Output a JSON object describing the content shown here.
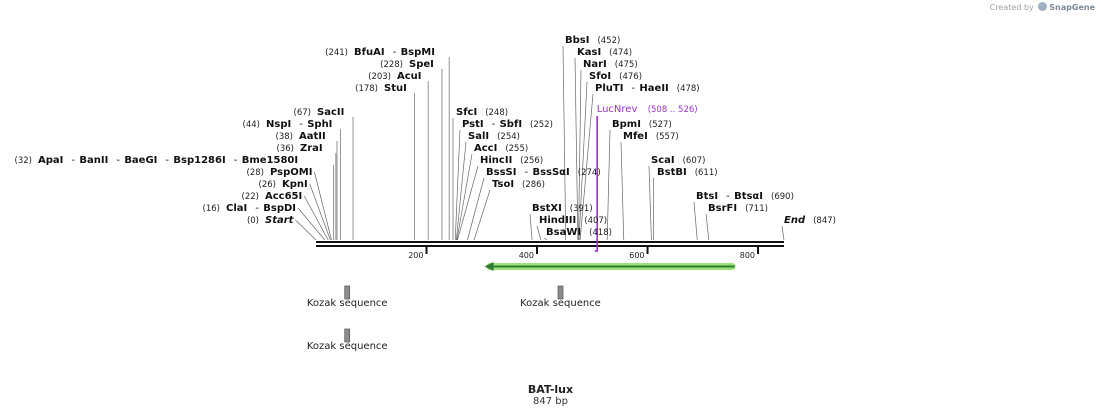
{
  "credit": {
    "prefix": "Created by",
    "brand": "SnapGene"
  },
  "map": {
    "name": "BAT-lux",
    "length_label": "847 bp",
    "length_bp": 847
  },
  "colors": {
    "primer": "#9b30c8",
    "feature_arrow": "#2e7d32",
    "feature_glow": "#9be27b",
    "box": "#8c8c8c"
  },
  "ruler": {
    "ticks": [
      200,
      400,
      600,
      800
    ]
  },
  "sites": [
    {
      "names": [
        "Start"
      ],
      "pos": "(0)",
      "bp": 0,
      "italic": true
    },
    {
      "names": [
        "ClaI",
        "BspDI"
      ],
      "pos": "(16)",
      "bp": 16
    },
    {
      "names": [
        "Acc65I"
      ],
      "pos": "(22)",
      "bp": 22
    },
    {
      "names": [
        "KpnI"
      ],
      "pos": "(26)",
      "bp": 26
    },
    {
      "names": [
        "PspOMI"
      ],
      "pos": "(28)",
      "bp": 28
    },
    {
      "names": [
        "ApaI",
        "BanII",
        "BaeGI",
        "Bsp1286I",
        "Bme1580I"
      ],
      "pos": "(32)",
      "bp": 32
    },
    {
      "names": [
        "ZraI"
      ],
      "pos": "(36)",
      "bp": 36
    },
    {
      "names": [
        "AatII"
      ],
      "pos": "(38)",
      "bp": 38
    },
    {
      "names": [
        "NspI",
        "SphI"
      ],
      "pos": "(44)",
      "bp": 44
    },
    {
      "names": [
        "SacII"
      ],
      "pos": "(67)",
      "bp": 67
    },
    {
      "names": [
        "StuI"
      ],
      "pos": "(178)",
      "bp": 178
    },
    {
      "names": [
        "AcuI"
      ],
      "pos": "(203)",
      "bp": 203
    },
    {
      "names": [
        "SpeI"
      ],
      "pos": "(228)",
      "bp": 228
    },
    {
      "names": [
        "BfuAI",
        "BspMI"
      ],
      "pos": "(241)",
      "bp": 241
    },
    {
      "names": [
        "SfcI"
      ],
      "pos": "(248)",
      "bp": 248
    },
    {
      "names": [
        "PstI",
        "SbfI"
      ],
      "pos": "(252)",
      "bp": 252
    },
    {
      "names": [
        "SalI"
      ],
      "pos": "(254)",
      "bp": 254
    },
    {
      "names": [
        "AccI"
      ],
      "pos": "(255)",
      "bp": 255
    },
    {
      "names": [
        "HincII"
      ],
      "pos": "(256)",
      "bp": 256
    },
    {
      "names": [
        "BssSI",
        "BssSαI"
      ],
      "pos": "(274)",
      "bp": 274
    },
    {
      "names": [
        "TsoI"
      ],
      "pos": "(286)",
      "bp": 286
    },
    {
      "names": [
        "BstXI"
      ],
      "pos": "(391)",
      "bp": 391
    },
    {
      "names": [
        "HindIII"
      ],
      "pos": "(407)",
      "bp": 407
    },
    {
      "names": [
        "BsaWI"
      ],
      "pos": "(418)",
      "bp": 418
    },
    {
      "names": [
        "BbsI"
      ],
      "pos": "(452)",
      "bp": 452
    },
    {
      "names": [
        "KasI"
      ],
      "pos": "(474)",
      "bp": 474
    },
    {
      "names": [
        "NarI"
      ],
      "pos": "(475)",
      "bp": 475
    },
    {
      "names": [
        "SfoI"
      ],
      "pos": "(476)",
      "bp": 476
    },
    {
      "names": [
        "PluTI",
        "HaeII"
      ],
      "pos": "(478)",
      "bp": 478
    },
    {
      "names": [
        "BpmI"
      ],
      "pos": "(527)",
      "bp": 527
    },
    {
      "names": [
        "MfeI"
      ],
      "pos": "(557)",
      "bp": 557
    },
    {
      "names": [
        "ScaI"
      ],
      "pos": "(607)",
      "bp": 607
    },
    {
      "names": [
        "BstBI"
      ],
      "pos": "(611)",
      "bp": 611
    },
    {
      "names": [
        "BtsI",
        "BtsαI"
      ],
      "pos": "(690)",
      "bp": 690
    },
    {
      "names": [
        "BsrFI"
      ],
      "pos": "(711)",
      "bp": 711
    },
    {
      "names": [
        "End"
      ],
      "pos": "(847)",
      "bp": 847,
      "italic": true
    }
  ],
  "primer": {
    "name": "LucNrev",
    "range": "(508 .. 526)",
    "start": 508,
    "end": 526
  },
  "features": [
    {
      "type": "arrow",
      "start": 305,
      "end": 763,
      "direction": "reverse"
    },
    {
      "type": "box",
      "label": "Kozak sequence",
      "start": 52,
      "end": 61
    },
    {
      "type": "box",
      "label": "Kozak sequence",
      "start": 438,
      "end": 447
    },
    {
      "type": "box",
      "label": "Kozak sequence",
      "start": 52,
      "end": 61
    }
  ]
}
